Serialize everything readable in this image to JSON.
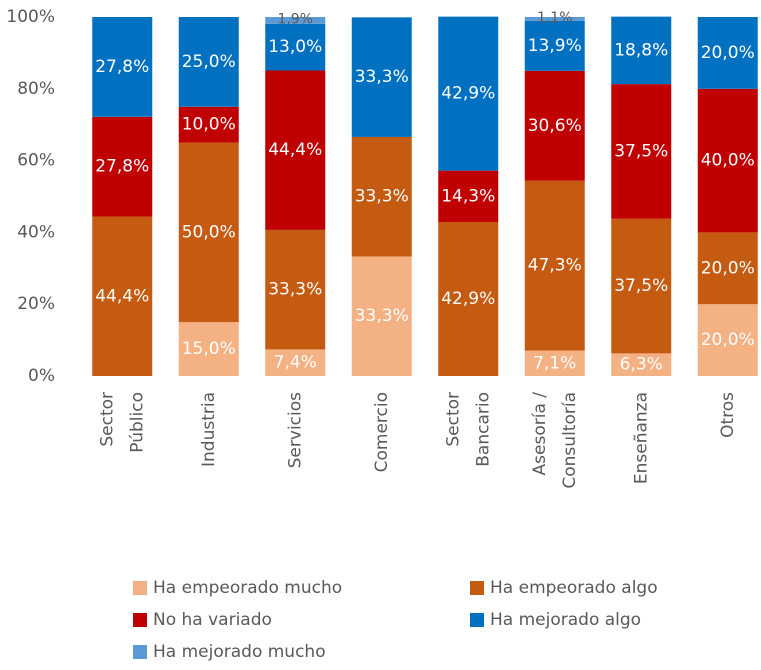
{
  "chart_data": {
    "type": "stacked_bar",
    "categories": [
      [
        "Sector",
        "Público"
      ],
      [
        "Industria"
      ],
      [
        "Servicios"
      ],
      [
        "Comercio"
      ],
      [
        "Sector",
        "Bancario"
      ],
      [
        "Asesoría /",
        "Consultoría"
      ],
      [
        "Enseñanza"
      ],
      [
        "Otros"
      ]
    ],
    "series": [
      {
        "name": "Ha empeorado mucho",
        "color": "#f4b183",
        "values": [
          null,
          15.0,
          7.4,
          33.3,
          null,
          7.1,
          6.3,
          20.0
        ],
        "value_labels": [
          null,
          "15,0%",
          "7,4%",
          "33,3%",
          null,
          "7,1%",
          "6,3%",
          "20,0%"
        ]
      },
      {
        "name": "Ha empeorado algo",
        "color": "#c55a11",
        "values": [
          44.4,
          50.0,
          33.3,
          33.3,
          42.9,
          47.3,
          37.5,
          20.0
        ],
        "value_labels": [
          "44,4%",
          "50,0%",
          "33,3%",
          "33,3%",
          "42,9%",
          "47,3%",
          "37,5%",
          "20,0%"
        ]
      },
      {
        "name": "No ha variado",
        "color": "#c00000",
        "values": [
          27.8,
          10.0,
          44.4,
          null,
          14.3,
          30.6,
          37.5,
          40.0
        ],
        "value_labels": [
          "27,8%",
          "10,0%",
          "44,4%",
          null,
          "14,3%",
          "30,6%",
          "37,5%",
          "40,0%"
        ]
      },
      {
        "name": "Ha mejorado algo",
        "color": "#0070c0",
        "values": [
          27.8,
          25.0,
          13.0,
          33.3,
          42.9,
          13.9,
          18.8,
          20.0
        ],
        "value_labels": [
          "27,8%",
          "25,0%",
          "13,0%",
          "33,3%",
          "42,9%",
          "13,9%",
          "18,8%",
          "20,0%"
        ]
      },
      {
        "name": "Ha mejorado mucho",
        "color": "#5b9bd5",
        "values": [
          null,
          null,
          1.9,
          null,
          null,
          1.1,
          null,
          null
        ],
        "value_labels": [
          null,
          null,
          "1,9%",
          null,
          null,
          "1,1%",
          null,
          null
        ]
      }
    ],
    "ylim": [
      0,
      100
    ],
    "yticks": [
      {
        "value": 0,
        "label": "0%"
      },
      {
        "value": 20,
        "label": "20%"
      },
      {
        "value": 40,
        "label": "40%"
      },
      {
        "value": 60,
        "label": "60%"
      },
      {
        "value": 80,
        "label": "80%"
      },
      {
        "value": 100,
        "label": "100%"
      }
    ],
    "legend": "bottom"
  }
}
